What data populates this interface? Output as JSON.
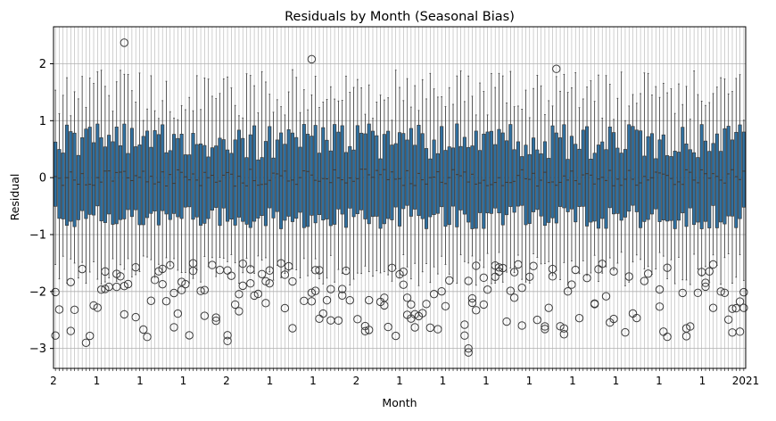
{
  "chart_data": {
    "type": "box",
    "title": "Residuals by Month (Seasonal Bias)",
    "xlabel": "Month",
    "ylabel": "Residual",
    "ylim": [
      -3.35,
      2.65
    ],
    "yticks": [
      -3,
      -2,
      -1,
      0,
      1,
      2
    ],
    "grid": true,
    "legend": "none",
    "box_color": "#2f6f9f",
    "edge_color": "#3a3a3a",
    "x_tick_labels_visible": [
      "2",
      "1",
      "1",
      "1",
      "2",
      "1",
      "1",
      "2",
      "1",
      "1",
      "1",
      "1",
      "1",
      "1",
      "1",
      "1",
      "2021"
    ],
    "x_tick_labels_note": "Ticks are dense and overlap into illegible text along the x axis",
    "box_count": 181,
    "summary": {
      "median_typical": 0.0,
      "q1_typical_range": [
        -0.9,
        -0.3
      ],
      "q3_typical_range": [
        0.3,
        0.95
      ],
      "whisker_low_typical": -1.9,
      "whisker_high_typical": 1.6
    },
    "outliers_highlight": [
      {
        "box_index": 18,
        "y": 2.37
      },
      {
        "box_index": 67,
        "y": 2.08
      },
      {
        "box_index": 131,
        "y": 1.91
      },
      {
        "box_index": 108,
        "y": -3.0
      },
      {
        "box_index": 108,
        "y": -3.07
      },
      {
        "box_index": 8,
        "y": -2.9
      },
      {
        "box_index": 45,
        "y": -2.87
      }
    ]
  }
}
